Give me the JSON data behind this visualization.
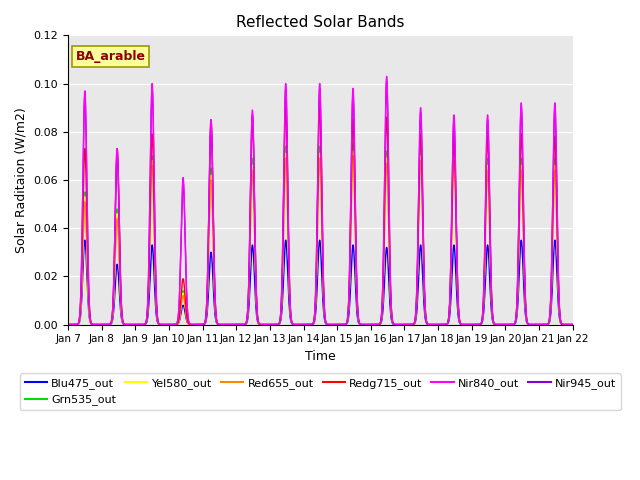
{
  "title": "Reflected Solar Bands",
  "xlabel": "Time",
  "ylabel": "Solar Raditaion (W/m2)",
  "xlim_days": [
    7,
    22
  ],
  "ylim": [
    0,
    0.12
  ],
  "yticks": [
    0.0,
    0.02,
    0.04,
    0.06,
    0.08,
    0.1,
    0.12
  ],
  "xtick_labels": [
    "Jan 7",
    "Jan 8",
    "Jan 9",
    "Jan 10",
    "Jan 11",
    "Jan 12",
    "Jan 13",
    "Jan 14",
    "Jan 15",
    "Jan 16",
    "Jan 17",
    "Jan 18",
    "Jan 19",
    "Jan 20",
    "Jan 21",
    "Jan 22"
  ],
  "annotation": "BA_arable",
  "annotation_color": "#8B0000",
  "annotation_bg": "#FFFF99",
  "annotation_edge": "#999900",
  "background_color": "#E8E8E8",
  "fig_bg": "#FFFFFF",
  "series": [
    {
      "name": "Blu475_out",
      "color": "#0000FF",
      "lw": 1.0
    },
    {
      "name": "Grn535_out",
      "color": "#00DD00",
      "lw": 1.0
    },
    {
      "name": "Yel580_out",
      "color": "#FFFF00",
      "lw": 1.0
    },
    {
      "name": "Red655_out",
      "color": "#FF8800",
      "lw": 1.0
    },
    {
      "name": "Redg715_out",
      "color": "#FF0000",
      "lw": 1.0
    },
    {
      "name": "Nir840_out",
      "color": "#FF00FF",
      "lw": 1.0
    },
    {
      "name": "Nir945_out",
      "color": "#8800CC",
      "lw": 1.0
    }
  ],
  "peak_centers": [
    7.5,
    8.46,
    9.5,
    10.42,
    11.25,
    12.48,
    13.47,
    14.48,
    15.47,
    16.47,
    17.48,
    18.47,
    19.47,
    20.47,
    21.47
  ],
  "peak_sigma": 0.06,
  "peak_amplitudes": {
    "Blu475_out": [
      0.035,
      0.025,
      0.033,
      0.008,
      0.03,
      0.033,
      0.035,
      0.035,
      0.033,
      0.032,
      0.033,
      0.033,
      0.033,
      0.035,
      0.035
    ],
    "Grn535_out": [
      0.055,
      0.048,
      0.07,
      0.014,
      0.065,
      0.069,
      0.074,
      0.074,
      0.075,
      0.072,
      0.073,
      0.073,
      0.069,
      0.069,
      0.069
    ],
    "Yel580_out": [
      0.053,
      0.046,
      0.068,
      0.013,
      0.062,
      0.066,
      0.071,
      0.071,
      0.072,
      0.069,
      0.07,
      0.07,
      0.066,
      0.066,
      0.066
    ],
    "Red655_out": [
      0.051,
      0.044,
      0.066,
      0.012,
      0.06,
      0.064,
      0.069,
      0.069,
      0.07,
      0.067,
      0.068,
      0.068,
      0.064,
      0.064,
      0.064
    ],
    "Redg715_out": [
      0.073,
      0.073,
      0.079,
      0.019,
      0.085,
      0.086,
      0.09,
      0.09,
      0.085,
      0.086,
      0.079,
      0.078,
      0.078,
      0.079,
      0.078
    ],
    "Nir840_out": [
      0.097,
      0.073,
      0.1,
      0.061,
      0.085,
      0.089,
      0.1,
      0.1,
      0.098,
      0.103,
      0.09,
      0.087,
      0.087,
      0.092,
      0.092
    ],
    "Nir945_out": [
      0.095,
      0.071,
      0.098,
      0.059,
      0.083,
      0.087,
      0.098,
      0.098,
      0.096,
      0.101,
      0.088,
      0.085,
      0.085,
      0.09,
      0.09
    ]
  },
  "draw_order": [
    0,
    1,
    2,
    3,
    4,
    6,
    5
  ]
}
